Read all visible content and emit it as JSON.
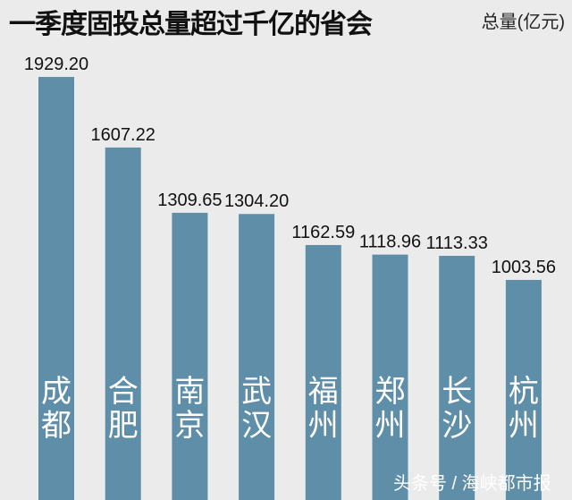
{
  "header": {
    "title": "一季度固投总量超过千亿的省会",
    "unit": "总量(亿元)"
  },
  "watermark": "头条号 / 海峡都市报",
  "chart_data": {
    "type": "bar",
    "title": "一季度固投总量超过千亿的省会",
    "ylabel": "总量(亿元)",
    "categories": [
      "成都",
      "合肥",
      "南京",
      "武汉",
      "福州",
      "郑州",
      "长沙",
      "杭州"
    ],
    "values": [
      1929.2,
      1607.22,
      1309.65,
      1304.2,
      1162.59,
      1118.96,
      1113.33,
      1003.56
    ],
    "value_labels": [
      "1929.20",
      "1607.22",
      "1309.65",
      "1304.20",
      "1162.59",
      "1118.96",
      "1113.33",
      "1003.56"
    ],
    "ylim": [
      0,
      2000
    ],
    "grid": false,
    "legend": "none",
    "bar_color": "#5f8ea8",
    "background_color": "#ebebeb"
  }
}
